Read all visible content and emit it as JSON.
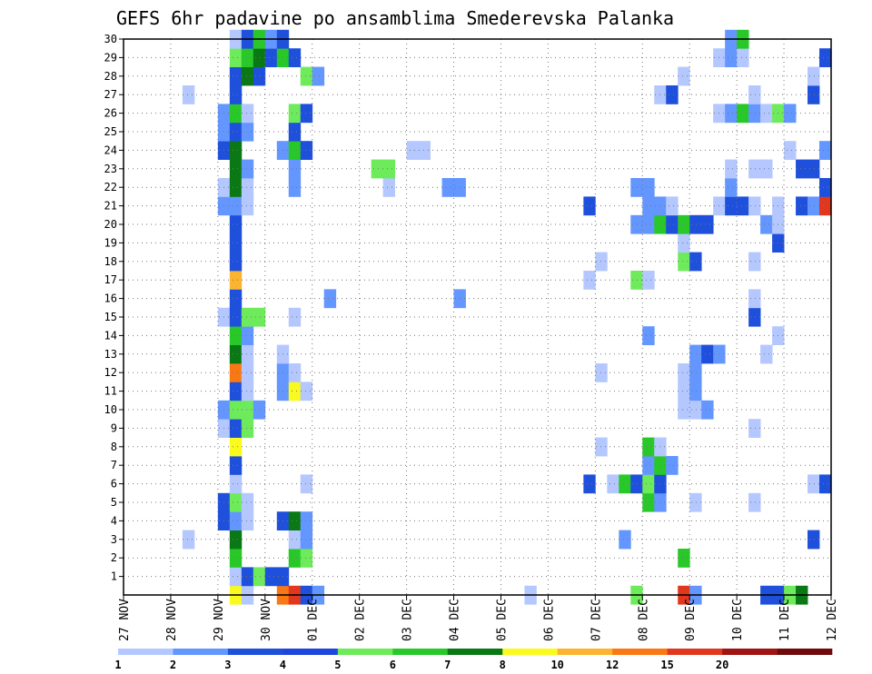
{
  "chart_data": {
    "type": "heatmap",
    "title": "GEFS 6hr padavine po ansamblima Smederevska Palanka",
    "x_tick_labels": [
      "27 NOV",
      "28 NOV",
      "29 NOV",
      "30 NOV",
      "01 DEC",
      "02 DEC",
      "03 DEC",
      "04 DEC",
      "05 DEC",
      "06 DEC",
      "07 DEC",
      "08 DEC",
      "09 DEC",
      "10 DEC",
      "11 DEC",
      "12 DEC"
    ],
    "x_unit": "6-hour step",
    "steps_per_day": 4,
    "x_range_steps": [
      0,
      60
    ],
    "y_tick_labels": [
      "1",
      "2",
      "3",
      "4",
      "5",
      "6",
      "7",
      "8",
      "9",
      "10",
      "11",
      "12",
      "13",
      "14",
      "15",
      "16",
      "17",
      "18",
      "19",
      "20",
      "21",
      "22",
      "23",
      "24",
      "25",
      "26",
      "27",
      "28",
      "29",
      "30"
    ],
    "y_range": [
      0,
      30
    ],
    "grid": true,
    "legend": {
      "placement": "bottom",
      "labels": [
        "1",
        "2",
        "3",
        "4",
        "5",
        "6",
        "7",
        "8",
        "10",
        "12",
        "15",
        "20"
      ],
      "colors": [
        "#b4c8ff",
        "#6496ff",
        "#1e50dc",
        "#1e46dc",
        "#6eeb5a",
        "#28c828",
        "#0a7814",
        "#fafa1e",
        "#fab432",
        "#fa7814",
        "#e1371e",
        "#a01414",
        "#6e0a0a"
      ]
    },
    "colors": [
      "#b4c8ff",
      "#6496ff",
      "#1e50dc",
      "#6eeb5a",
      "#28c828",
      "#0a7814",
      "#fafa1e",
      "#fab432",
      "#fa7814",
      "#e1371e"
    ],
    "cells": [
      [
        0,
        9,
        7
      ],
      [
        0,
        10,
        1
      ],
      [
        0,
        13,
        9
      ],
      [
        0,
        14,
        10
      ],
      [
        0,
        15,
        3
      ],
      [
        0,
        16,
        2
      ],
      [
        0,
        34,
        1
      ],
      [
        0,
        43,
        4
      ],
      [
        0,
        47,
        10
      ],
      [
        0,
        48,
        2
      ],
      [
        0,
        54,
        3
      ],
      [
        0,
        55,
        3
      ],
      [
        0,
        56,
        4
      ],
      [
        0,
        57,
        6
      ],
      [
        1,
        9,
        1
      ],
      [
        1,
        10,
        3
      ],
      [
        1,
        11,
        4
      ],
      [
        1,
        12,
        3
      ],
      [
        1,
        13,
        3
      ],
      [
        2,
        9,
        5
      ],
      [
        2,
        14,
        5
      ],
      [
        2,
        15,
        4
      ],
      [
        2,
        47,
        5
      ],
      [
        3,
        5,
        1
      ],
      [
        3,
        9,
        6
      ],
      [
        3,
        14,
        1
      ],
      [
        3,
        15,
        2
      ],
      [
        3,
        42,
        2
      ],
      [
        3,
        58,
        3
      ],
      [
        4,
        8,
        3
      ],
      [
        4,
        9,
        2
      ],
      [
        4,
        10,
        1
      ],
      [
        4,
        13,
        3
      ],
      [
        4,
        14,
        6
      ],
      [
        4,
        15,
        2
      ],
      [
        5,
        8,
        3
      ],
      [
        5,
        9,
        4
      ],
      [
        5,
        10,
        1
      ],
      [
        5,
        44,
        5
      ],
      [
        5,
        45,
        2
      ],
      [
        5,
        48,
        1
      ],
      [
        5,
        53,
        1
      ],
      [
        6,
        9,
        1
      ],
      [
        6,
        15,
        1
      ],
      [
        6,
        39,
        3
      ],
      [
        6,
        41,
        1
      ],
      [
        6,
        42,
        5
      ],
      [
        6,
        43,
        3
      ],
      [
        6,
        44,
        4
      ],
      [
        6,
        45,
        3
      ],
      [
        6,
        58,
        1
      ],
      [
        6,
        59,
        3
      ],
      [
        7,
        9,
        3
      ],
      [
        7,
        44,
        2
      ],
      [
        7,
        45,
        5
      ],
      [
        7,
        46,
        2
      ],
      [
        8,
        9,
        7
      ],
      [
        8,
        40,
        1
      ],
      [
        8,
        44,
        5
      ],
      [
        8,
        45,
        1
      ],
      [
        9,
        8,
        1
      ],
      [
        9,
        9,
        3
      ],
      [
        9,
        10,
        4
      ],
      [
        9,
        53,
        1
      ],
      [
        10,
        8,
        2
      ],
      [
        10,
        9,
        4
      ],
      [
        10,
        10,
        4
      ],
      [
        10,
        11,
        2
      ],
      [
        10,
        47,
        1
      ],
      [
        10,
        48,
        1
      ],
      [
        10,
        49,
        2
      ],
      [
        11,
        9,
        3
      ],
      [
        11,
        10,
        1
      ],
      [
        11,
        13,
        2
      ],
      [
        11,
        14,
        7
      ],
      [
        11,
        15,
        1
      ],
      [
        11,
        47,
        1
      ],
      [
        11,
        48,
        2
      ],
      [
        12,
        9,
        9
      ],
      [
        12,
        10,
        1
      ],
      [
        12,
        13,
        2
      ],
      [
        12,
        14,
        1
      ],
      [
        12,
        40,
        1
      ],
      [
        12,
        47,
        1
      ],
      [
        12,
        48,
        2
      ],
      [
        13,
        9,
        6
      ],
      [
        13,
        10,
        1
      ],
      [
        13,
        13,
        1
      ],
      [
        13,
        48,
        2
      ],
      [
        13,
        49,
        3
      ],
      [
        13,
        50,
        2
      ],
      [
        13,
        54,
        1
      ],
      [
        14,
        9,
        5
      ],
      [
        14,
        10,
        2
      ],
      [
        14,
        44,
        2
      ],
      [
        14,
        55,
        1
      ],
      [
        15,
        8,
        1
      ],
      [
        15,
        9,
        3
      ],
      [
        15,
        10,
        4
      ],
      [
        15,
        11,
        4
      ],
      [
        15,
        14,
        1
      ],
      [
        15,
        53,
        3
      ],
      [
        16,
        9,
        3
      ],
      [
        16,
        17,
        2
      ],
      [
        16,
        28,
        2
      ],
      [
        16,
        53,
        1
      ],
      [
        17,
        9,
        8
      ],
      [
        17,
        39,
        1
      ],
      [
        17,
        43,
        4
      ],
      [
        17,
        44,
        1
      ],
      [
        18,
        9,
        3
      ],
      [
        18,
        40,
        1
      ],
      [
        18,
        47,
        4
      ],
      [
        18,
        48,
        3
      ],
      [
        18,
        53,
        1
      ],
      [
        19,
        9,
        3
      ],
      [
        19,
        47,
        1
      ],
      [
        19,
        55,
        3
      ],
      [
        20,
        9,
        3
      ],
      [
        20,
        43,
        2
      ],
      [
        20,
        44,
        2
      ],
      [
        20,
        45,
        5
      ],
      [
        20,
        46,
        3
      ],
      [
        20,
        47,
        5
      ],
      [
        20,
        48,
        3
      ],
      [
        20,
        49,
        3
      ],
      [
        20,
        54,
        2
      ],
      [
        20,
        55,
        1
      ],
      [
        21,
        8,
        2
      ],
      [
        21,
        9,
        2
      ],
      [
        21,
        10,
        1
      ],
      [
        21,
        39,
        3
      ],
      [
        21,
        44,
        2
      ],
      [
        21,
        45,
        2
      ],
      [
        21,
        46,
        1
      ],
      [
        21,
        50,
        1
      ],
      [
        21,
        51,
        3
      ],
      [
        21,
        52,
        3
      ],
      [
        21,
        53,
        1
      ],
      [
        21,
        55,
        1
      ],
      [
        21,
        57,
        3
      ],
      [
        21,
        58,
        2
      ],
      [
        21,
        59,
        10
      ],
      [
        22,
        8,
        1
      ],
      [
        22,
        9,
        6
      ],
      [
        22,
        10,
        1
      ],
      [
        22,
        14,
        2
      ],
      [
        22,
        22,
        1
      ],
      [
        22,
        27,
        2
      ],
      [
        22,
        28,
        2
      ],
      [
        22,
        43,
        2
      ],
      [
        22,
        44,
        2
      ],
      [
        22,
        51,
        2
      ],
      [
        22,
        59,
        3
      ],
      [
        23,
        9,
        6
      ],
      [
        23,
        10,
        2
      ],
      [
        23,
        14,
        2
      ],
      [
        23,
        21,
        4
      ],
      [
        23,
        22,
        4
      ],
      [
        23,
        51,
        1
      ],
      [
        23,
        53,
        1
      ],
      [
        23,
        54,
        1
      ],
      [
        23,
        57,
        3
      ],
      [
        23,
        58,
        3
      ],
      [
        24,
        8,
        3
      ],
      [
        24,
        9,
        6
      ],
      [
        24,
        13,
        2
      ],
      [
        24,
        14,
        5
      ],
      [
        24,
        15,
        3
      ],
      [
        24,
        24,
        1
      ],
      [
        24,
        25,
        1
      ],
      [
        24,
        56,
        1
      ],
      [
        24,
        59,
        2
      ],
      [
        25,
        8,
        2
      ],
      [
        25,
        9,
        3
      ],
      [
        25,
        10,
        2
      ],
      [
        25,
        14,
        3
      ],
      [
        26,
        8,
        2
      ],
      [
        26,
        9,
        5
      ],
      [
        26,
        10,
        1
      ],
      [
        26,
        14,
        4
      ],
      [
        26,
        15,
        3
      ],
      [
        26,
        50,
        1
      ],
      [
        26,
        51,
        2
      ],
      [
        26,
        52,
        5
      ],
      [
        26,
        53,
        2
      ],
      [
        26,
        54,
        1
      ],
      [
        26,
        55,
        4
      ],
      [
        26,
        56,
        2
      ],
      [
        27,
        5,
        1
      ],
      [
        27,
        9,
        3
      ],
      [
        27,
        45,
        1
      ],
      [
        27,
        46,
        3
      ],
      [
        27,
        53,
        1
      ],
      [
        27,
        58,
        3
      ],
      [
        28,
        9,
        3
      ],
      [
        28,
        10,
        6
      ],
      [
        28,
        11,
        3
      ],
      [
        28,
        15,
        4
      ],
      [
        28,
        16,
        2
      ],
      [
        28,
        47,
        1
      ],
      [
        28,
        58,
        1
      ],
      [
        29,
        9,
        4
      ],
      [
        29,
        10,
        5
      ],
      [
        29,
        11,
        6
      ],
      [
        29,
        12,
        3
      ],
      [
        29,
        13,
        5
      ],
      [
        29,
        14,
        3
      ],
      [
        29,
        50,
        1
      ],
      [
        29,
        51,
        2
      ],
      [
        29,
        52,
        1
      ],
      [
        29,
        59,
        3
      ],
      [
        30,
        9,
        1
      ],
      [
        30,
        10,
        3
      ],
      [
        30,
        11,
        5
      ],
      [
        30,
        12,
        2
      ],
      [
        30,
        13,
        3
      ],
      [
        30,
        51,
        2
      ],
      [
        30,
        52,
        5
      ]
    ]
  }
}
